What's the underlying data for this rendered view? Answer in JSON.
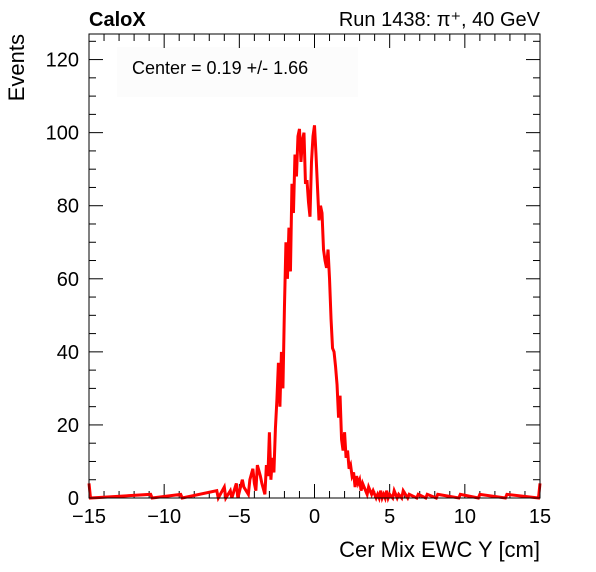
{
  "header": {
    "left_title": "CaloX",
    "right_title": "Run 1438: π⁺, 40 GeV"
  },
  "annotation": {
    "text": "Center = 0.19 +/- 1.66"
  },
  "colors": {
    "line": "#ff0000",
    "axis": "#000000",
    "background": "#ffffff"
  },
  "chart_data": {
    "type": "line",
    "title": "",
    "xlabel": "Cer Mix EWC Y [cm]",
    "ylabel": "Events",
    "xlim": [
      -15,
      15
    ],
    "ylim": [
      0,
      127
    ],
    "xticks": [
      -15,
      -10,
      -5,
      0,
      5,
      10,
      15
    ],
    "xtick_labels": [
      "−15",
      "−10",
      "−5",
      "0",
      "5",
      "10",
      "15"
    ],
    "yticks": [
      0,
      20,
      40,
      60,
      80,
      100,
      120
    ],
    "ytick_labels": [
      "0",
      "20",
      "40",
      "60",
      "80",
      "100",
      "120"
    ],
    "grid": false,
    "legend": false,
    "series": [
      {
        "x": [
          -15,
          -14.9,
          -10.9,
          -10.8,
          -8.9,
          -8.8,
          -6.5,
          -6.4,
          -6.0,
          -5.9,
          -5.6,
          -5.5,
          -5.2,
          -5.1,
          -4.8,
          -4.7,
          -4.4,
          -4.3,
          -4.1,
          -4.0,
          -3.9,
          -3.8,
          -3.6,
          -3.5,
          -3.3,
          -3.2,
          -3.1,
          -3.0,
          -2.9,
          -2.8,
          -2.7,
          -2.6,
          -2.5,
          -2.4,
          -2.3,
          -2.2,
          -2.1,
          -2.0,
          -1.9,
          -1.8,
          -1.7,
          -1.6,
          -1.5,
          -1.4,
          -1.3,
          -1.2,
          -1.1,
          -1.0,
          -0.9,
          -0.8,
          -0.7,
          -0.6,
          -0.5,
          -0.4,
          -0.3,
          -0.2,
          -0.1,
          0.0,
          0.1,
          0.2,
          0.3,
          0.4,
          0.5,
          0.6,
          0.7,
          0.8,
          0.9,
          1.0,
          1.1,
          1.2,
          1.3,
          1.4,
          1.5,
          1.6,
          1.7,
          1.8,
          1.9,
          2.0,
          2.1,
          2.2,
          2.3,
          2.4,
          2.5,
          2.6,
          2.7,
          2.8,
          2.9,
          3.0,
          3.1,
          3.2,
          3.3,
          3.4,
          3.5,
          3.6,
          3.7,
          3.8,
          3.9,
          4.0,
          4.1,
          4.2,
          4.3,
          4.4,
          4.5,
          4.6,
          4.7,
          4.8,
          4.9,
          5.0,
          5.2,
          5.3,
          5.5,
          5.6,
          5.8,
          5.9,
          6.2,
          6.3,
          6.8,
          6.9,
          7.4,
          7.5,
          8.1,
          8.2,
          9.6,
          9.7,
          10.9,
          11.0,
          12.7,
          12.8,
          14.9,
          15.0
        ],
        "y": [
          4,
          0,
          1,
          0,
          1,
          0,
          2,
          0,
          3,
          0,
          2,
          0,
          4,
          0,
          5,
          3,
          1,
          5,
          8,
          4,
          2,
          9,
          6,
          4,
          1,
          9,
          6,
          18,
          5,
          11,
          7,
          19,
          27,
          37,
          25,
          40,
          30,
          52,
          70,
          60,
          74,
          62,
          86,
          78,
          94,
          88,
          99,
          101,
          92,
          98,
          100,
          86,
          87,
          81,
          77,
          92,
          99,
          102,
          94,
          85,
          76,
          80,
          78,
          68,
          65,
          63,
          68,
          60,
          49,
          41,
          40,
          36,
          31,
          22,
          28,
          16,
          13,
          18,
          11,
          13,
          8,
          9,
          6,
          7,
          3,
          6,
          4,
          5,
          2,
          4,
          3,
          2,
          1,
          3,
          2,
          1,
          2,
          1,
          0,
          1,
          0,
          2,
          0,
          1,
          0,
          2,
          0,
          1,
          0,
          2,
          0,
          1,
          0,
          2,
          0,
          1,
          0,
          1,
          0,
          1,
          0,
          1,
          0,
          1,
          0,
          1,
          0,
          1,
          0,
          4
        ]
      }
    ]
  }
}
